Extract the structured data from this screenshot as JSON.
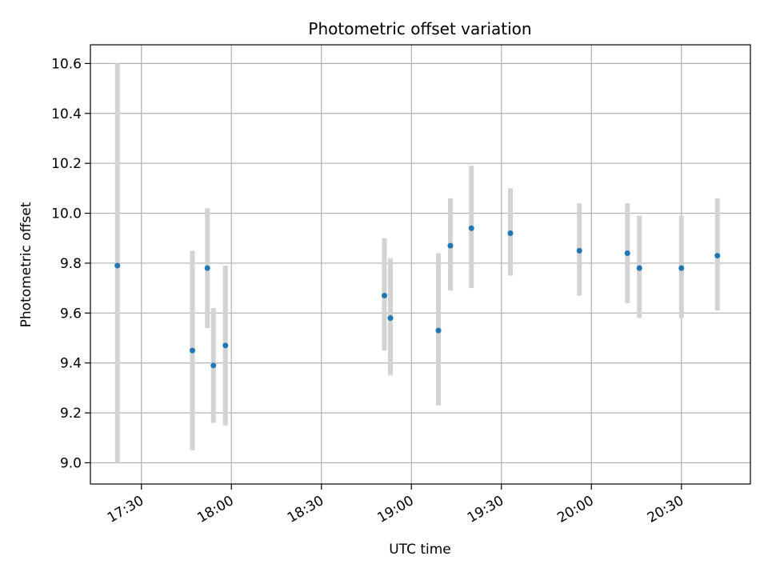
{
  "chart_data": {
    "type": "scatter",
    "title": "Photometric offset variation",
    "xlabel": "UTC time",
    "ylabel": "Photometric offset",
    "grid": true,
    "point_color": "#1f77b4",
    "errorbar_color": "#d3d3d3",
    "xlim": [
      "17:13",
      "20:53"
    ],
    "ylim": [
      8.915,
      10.675
    ],
    "x_ticks": [
      "17:30",
      "18:00",
      "18:30",
      "19:00",
      "19:30",
      "20:00",
      "20:30"
    ],
    "y_ticks": [
      "9.0",
      "9.2",
      "9.4",
      "9.6",
      "9.8",
      "10.0",
      "10.2",
      "10.4",
      "10.6"
    ],
    "points": [
      {
        "x": "17:22",
        "y": 9.79,
        "ylow": 9.0,
        "yhigh": 10.6
      },
      {
        "x": "17:47",
        "y": 9.45,
        "ylow": 9.05,
        "yhigh": 9.85
      },
      {
        "x": "17:52",
        "y": 9.78,
        "ylow": 9.54,
        "yhigh": 10.02
      },
      {
        "x": "17:54",
        "y": 9.39,
        "ylow": 9.16,
        "yhigh": 9.62
      },
      {
        "x": "17:58",
        "y": 9.47,
        "ylow": 9.15,
        "yhigh": 9.79
      },
      {
        "x": "18:51",
        "y": 9.67,
        "ylow": 9.45,
        "yhigh": 9.9
      },
      {
        "x": "18:53",
        "y": 9.58,
        "ylow": 9.35,
        "yhigh": 9.82
      },
      {
        "x": "19:09",
        "y": 9.53,
        "ylow": 9.23,
        "yhigh": 9.84
      },
      {
        "x": "19:13",
        "y": 9.87,
        "ylow": 9.69,
        "yhigh": 10.06
      },
      {
        "x": "19:20",
        "y": 9.94,
        "ylow": 9.7,
        "yhigh": 10.19
      },
      {
        "x": "19:33",
        "y": 9.92,
        "ylow": 9.75,
        "yhigh": 10.1
      },
      {
        "x": "19:56",
        "y": 9.85,
        "ylow": 9.67,
        "yhigh": 10.04
      },
      {
        "x": "20:12",
        "y": 9.84,
        "ylow": 9.64,
        "yhigh": 10.04
      },
      {
        "x": "20:16",
        "y": 9.78,
        "ylow": 9.58,
        "yhigh": 9.99
      },
      {
        "x": "20:30",
        "y": 9.78,
        "ylow": 9.58,
        "yhigh": 9.99
      },
      {
        "x": "20:42",
        "y": 9.83,
        "ylow": 9.61,
        "yhigh": 10.06
      }
    ]
  }
}
